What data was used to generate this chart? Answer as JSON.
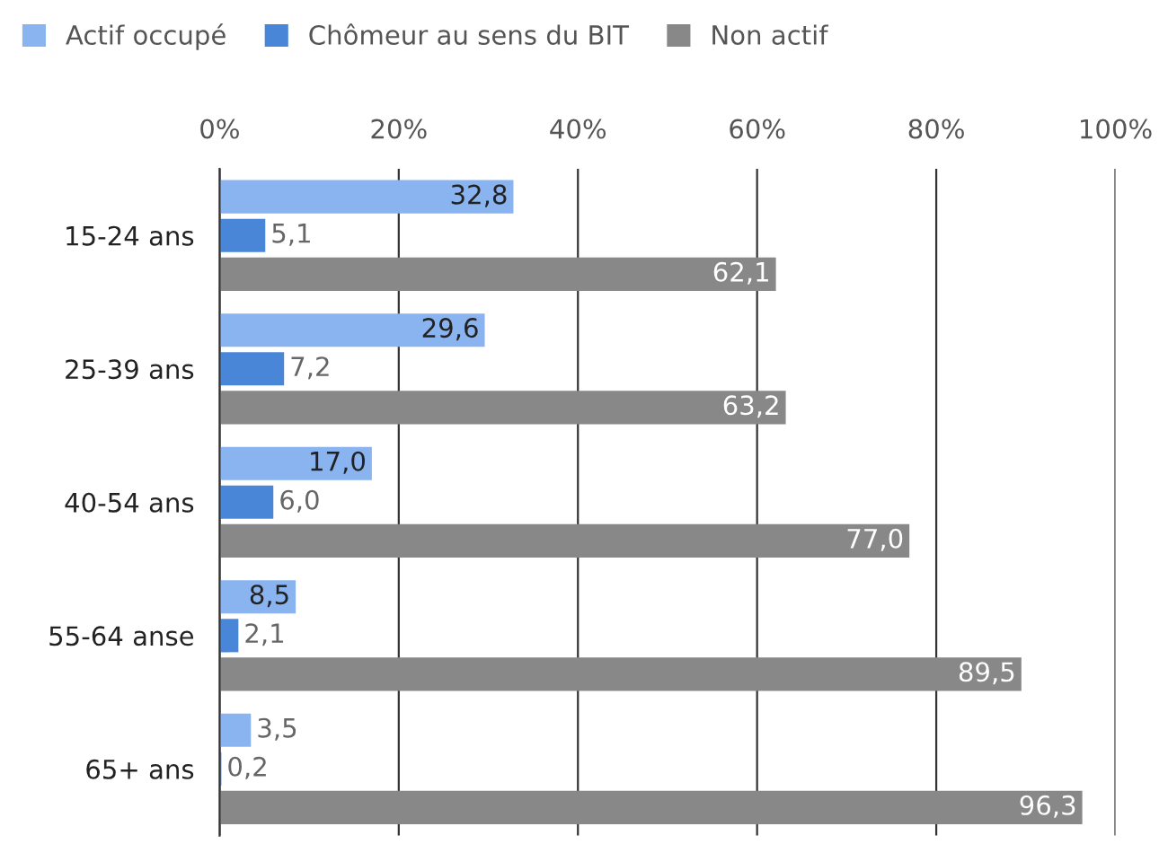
{
  "chart_data": {
    "type": "bar",
    "orientation": "horizontal",
    "categories": [
      "15-24 ans",
      "25-39 ans",
      "40-54 ans",
      "55-64 anse",
      "65+ ans"
    ],
    "series": [
      {
        "name": "Actif occupé",
        "color": "#8ab4f0",
        "values": [
          32.8,
          29.6,
          17.0,
          8.5,
          3.5
        ],
        "value_labels": [
          "32,8",
          "29,6",
          "17,0",
          "8,5",
          "3,5"
        ]
      },
      {
        "name": "Chômeur au sens du BIT",
        "color": "#4a86d8",
        "values": [
          5.1,
          7.2,
          6.0,
          2.1,
          0.2
        ],
        "value_labels": [
          "5,1",
          "7,2",
          "6,0",
          "2,1",
          "0,2"
        ]
      },
      {
        "name": "Non actif",
        "color": "#888888",
        "values": [
          62.1,
          63.2,
          77.0,
          89.5,
          96.3
        ],
        "value_labels": [
          "62,1",
          "63,2",
          "77,0",
          "89,5",
          "96,3"
        ]
      }
    ],
    "xlim": [
      0,
      100
    ],
    "xticks": [
      {
        "value": 0,
        "label": "0%"
      },
      {
        "value": 20,
        "label": "20%"
      },
      {
        "value": 40,
        "label": "40%"
      },
      {
        "value": 60,
        "label": "60%"
      },
      {
        "value": 80,
        "label": "80%"
      },
      {
        "value": 100,
        "label": "100%"
      }
    ],
    "grid": "x",
    "legend": "top left"
  }
}
